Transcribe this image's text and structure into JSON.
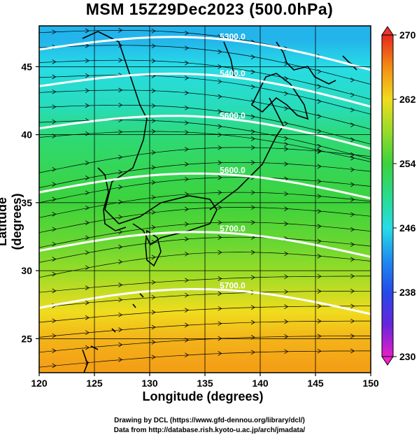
{
  "title": "MSM 15Z29Dec2023 (500.0hPa)",
  "xlabel": "Longitude (degrees)",
  "ylabel": "Latitude  (degrees)",
  "x_ticks": [
    "120",
    "125",
    "130",
    "135",
    "140",
    "145",
    "150"
  ],
  "y_ticks": [
    "25",
    "30",
    "35",
    "40",
    "45"
  ],
  "colorbar": {
    "ticks": [
      "230",
      "238",
      "246",
      "254",
      "262",
      "270"
    ],
    "min": 230,
    "max": 270
  },
  "contour_labels": [
    "5300.0",
    "5400.0",
    "5600.0",
    "5700.0"
  ],
  "credits": {
    "line1": "Drawing by DCL (https://www.gfd-dennou.org/library/dcl/)",
    "line2": "Data from http://database.rish.kyoto-u.ac.jp/arch/jmadata/"
  },
  "chart_data": {
    "type": "heatmap",
    "variable": "temperature (K) with geopotential height contours and wind streamlines",
    "xlim": [
      120,
      150
    ],
    "ylim": [
      22.5,
      48
    ],
    "colorbar_range": [
      230,
      270
    ],
    "temperature_by_latitude": {
      "lat": [
        47,
        45,
        42,
        40,
        37,
        35,
        32,
        30,
        27,
        25,
        23
      ],
      "value": [
        244,
        246,
        248,
        251,
        253,
        254,
        256,
        258,
        262,
        264,
        265
      ]
    },
    "height_contours": [
      {
        "label": "5300.0",
        "lat_at_140E": 46.3
      },
      {
        "label": "5400.0",
        "lat_at_140E": 43.6
      },
      {
        "label": "5600.0",
        "lat_at_140E": 40.5
      },
      {
        "label": "5600.0",
        "lat_at_140E": 36.5
      },
      {
        "label": "5700.0",
        "lat_at_140E": 32.2
      },
      {
        "label": "5700.0",
        "lat_at_140E": 28.0
      }
    ],
    "wind": "westerly streamlines across domain"
  }
}
